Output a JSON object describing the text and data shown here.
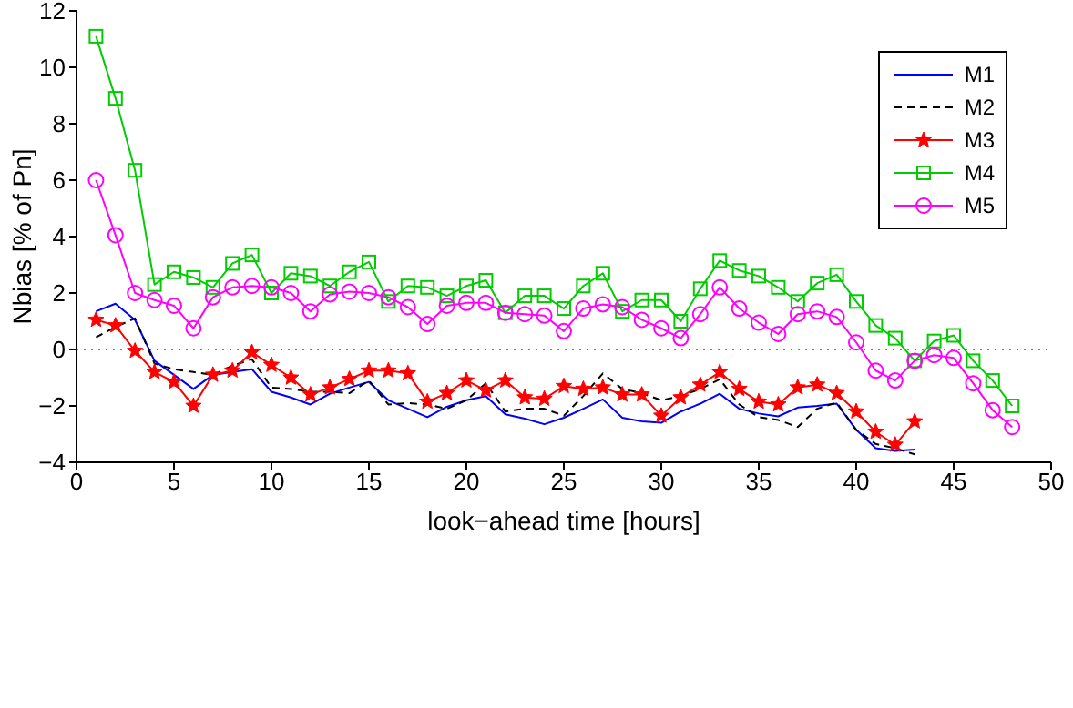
{
  "chart_data": {
    "type": "line",
    "xlabel": "look−ahead time [hours]",
    "ylabel": "Nbias [% of Pn]",
    "xlim": [
      0,
      50
    ],
    "xticks": [
      0,
      5,
      10,
      15,
      20,
      25,
      30,
      35,
      40,
      45,
      50
    ],
    "ylim": [
      -4,
      12
    ],
    "yticks": [
      -4,
      -2,
      0,
      2,
      4,
      6,
      8,
      10,
      12
    ],
    "legend": "top right",
    "ref_lines": [
      {
        "axis": "y",
        "value": 0,
        "color": "#808080",
        "line_style": "dotted"
      }
    ],
    "series": [
      {
        "name": "M1",
        "color": "#0000ff",
        "marker": "none",
        "line_style": "solid",
        "x": [
          1,
          2,
          3,
          4,
          5,
          6,
          7,
          8,
          9,
          10,
          11,
          12,
          13,
          14,
          15,
          16,
          17,
          18,
          19,
          20,
          21,
          22,
          23,
          24,
          25,
          26,
          27,
          28,
          29,
          30,
          31,
          32,
          33,
          34,
          35,
          36,
          37,
          38,
          39,
          40,
          41,
          42,
          43
        ],
        "values": [
          1.35,
          1.62,
          1.05,
          -0.4,
          -0.9,
          -1.4,
          -0.9,
          -0.8,
          -0.7,
          -1.5,
          -1.7,
          -1.95,
          -1.57,
          -1.35,
          -1.15,
          -1.8,
          -2.1,
          -2.4,
          -2.03,
          -1.8,
          -1.65,
          -2.3,
          -2.45,
          -2.65,
          -2.42,
          -2.1,
          -1.77,
          -2.42,
          -2.55,
          -2.6,
          -2.2,
          -1.92,
          -1.57,
          -2.1,
          -2.27,
          -2.37,
          -2.06,
          -2.0,
          -1.92,
          -2.85,
          -3.5,
          -3.6,
          -3.55
        ]
      },
      {
        "name": "M2",
        "color": "#000000",
        "marker": "none",
        "line_style": "dashed",
        "x": [
          1,
          2,
          3,
          4,
          5,
          6,
          7,
          8,
          9,
          10,
          11,
          12,
          13,
          14,
          15,
          16,
          17,
          18,
          19,
          20,
          21,
          22,
          23,
          24,
          25,
          26,
          27,
          28,
          29,
          30,
          31,
          32,
          33,
          34,
          35,
          36,
          37,
          38,
          39,
          40,
          41,
          42,
          43
        ],
        "values": [
          0.43,
          0.8,
          1.1,
          -0.5,
          -0.7,
          -0.8,
          -0.9,
          -0.57,
          -0.35,
          -1.35,
          -1.4,
          -1.5,
          -1.5,
          -1.55,
          -1.1,
          -1.95,
          -1.9,
          -1.95,
          -2.1,
          -1.8,
          -1.2,
          -2.2,
          -2.1,
          -2.1,
          -2.35,
          -1.65,
          -0.85,
          -1.4,
          -1.55,
          -1.8,
          -1.65,
          -1.4,
          -1.06,
          -1.95,
          -2.4,
          -2.5,
          -2.75,
          -2.1,
          -1.88,
          -2.85,
          -3.35,
          -3.5,
          -3.72
        ]
      },
      {
        "name": "M3",
        "color": "#ff0000",
        "marker": "star",
        "line_style": "solid",
        "x": [
          1,
          2,
          3,
          4,
          5,
          6,
          7,
          8,
          9,
          10,
          11,
          12,
          13,
          14,
          15,
          16,
          17,
          18,
          19,
          20,
          21,
          22,
          23,
          24,
          25,
          26,
          27,
          28,
          29,
          30,
          31,
          32,
          33,
          34,
          35,
          36,
          37,
          38,
          39,
          40,
          41,
          42,
          43
        ],
        "values": [
          1.05,
          0.85,
          -0.05,
          -0.8,
          -1.15,
          -2.0,
          -0.9,
          -0.75,
          -0.1,
          -0.55,
          -1.0,
          -1.6,
          -1.35,
          -1.05,
          -0.75,
          -0.75,
          -0.85,
          -1.85,
          -1.55,
          -1.1,
          -1.45,
          -1.1,
          -1.7,
          -1.75,
          -1.3,
          -1.4,
          -1.35,
          -1.6,
          -1.6,
          -2.35,
          -1.7,
          -1.25,
          -0.8,
          -1.4,
          -1.85,
          -1.95,
          -1.35,
          -1.25,
          -1.55,
          -2.2,
          -2.92,
          -3.38,
          -2.55
        ]
      },
      {
        "name": "M4",
        "color": "#00cc00",
        "marker": "square",
        "line_style": "solid",
        "x": [
          1,
          2,
          3,
          4,
          5,
          6,
          7,
          8,
          9,
          10,
          11,
          12,
          13,
          14,
          15,
          16,
          17,
          18,
          19,
          20,
          21,
          22,
          23,
          24,
          25,
          26,
          27,
          28,
          29,
          30,
          31,
          32,
          33,
          34,
          35,
          36,
          37,
          38,
          39,
          40,
          41,
          42,
          43,
          44,
          45,
          46,
          47,
          48
        ],
        "values": [
          11.1,
          8.9,
          6.35,
          2.3,
          2.75,
          2.55,
          2.2,
          3.05,
          3.35,
          2.0,
          2.7,
          2.6,
          2.25,
          2.75,
          3.1,
          1.7,
          2.25,
          2.2,
          1.9,
          2.25,
          2.45,
          1.3,
          1.9,
          1.9,
          1.45,
          2.25,
          2.7,
          1.35,
          1.75,
          1.75,
          1.0,
          2.15,
          3.15,
          2.8,
          2.6,
          2.2,
          1.7,
          2.35,
          2.65,
          1.7,
          0.85,
          0.4,
          -0.4,
          0.3,
          0.5,
          -0.4,
          -1.1,
          -2.0
        ]
      },
      {
        "name": "M5",
        "color": "#ff00ff",
        "marker": "circle",
        "line_style": "solid",
        "x": [
          1,
          2,
          3,
          4,
          5,
          6,
          7,
          8,
          9,
          10,
          11,
          12,
          13,
          14,
          15,
          16,
          17,
          18,
          19,
          20,
          21,
          22,
          23,
          24,
          25,
          26,
          27,
          28,
          29,
          30,
          31,
          32,
          33,
          34,
          35,
          36,
          37,
          38,
          39,
          40,
          41,
          42,
          43,
          44,
          45,
          46,
          47,
          48
        ],
        "values": [
          6.0,
          4.05,
          2.0,
          1.75,
          1.55,
          0.75,
          1.85,
          2.2,
          2.25,
          2.2,
          2.0,
          1.35,
          1.95,
          2.05,
          2.0,
          1.85,
          1.5,
          0.9,
          1.55,
          1.65,
          1.65,
          1.3,
          1.25,
          1.2,
          0.65,
          1.45,
          1.6,
          1.5,
          1.05,
          0.75,
          0.4,
          1.25,
          2.2,
          1.45,
          0.95,
          0.55,
          1.25,
          1.35,
          1.15,
          0.25,
          -0.75,
          -1.1,
          -0.4,
          -0.2,
          -0.3,
          -1.2,
          -2.15,
          -2.75
        ]
      }
    ]
  }
}
